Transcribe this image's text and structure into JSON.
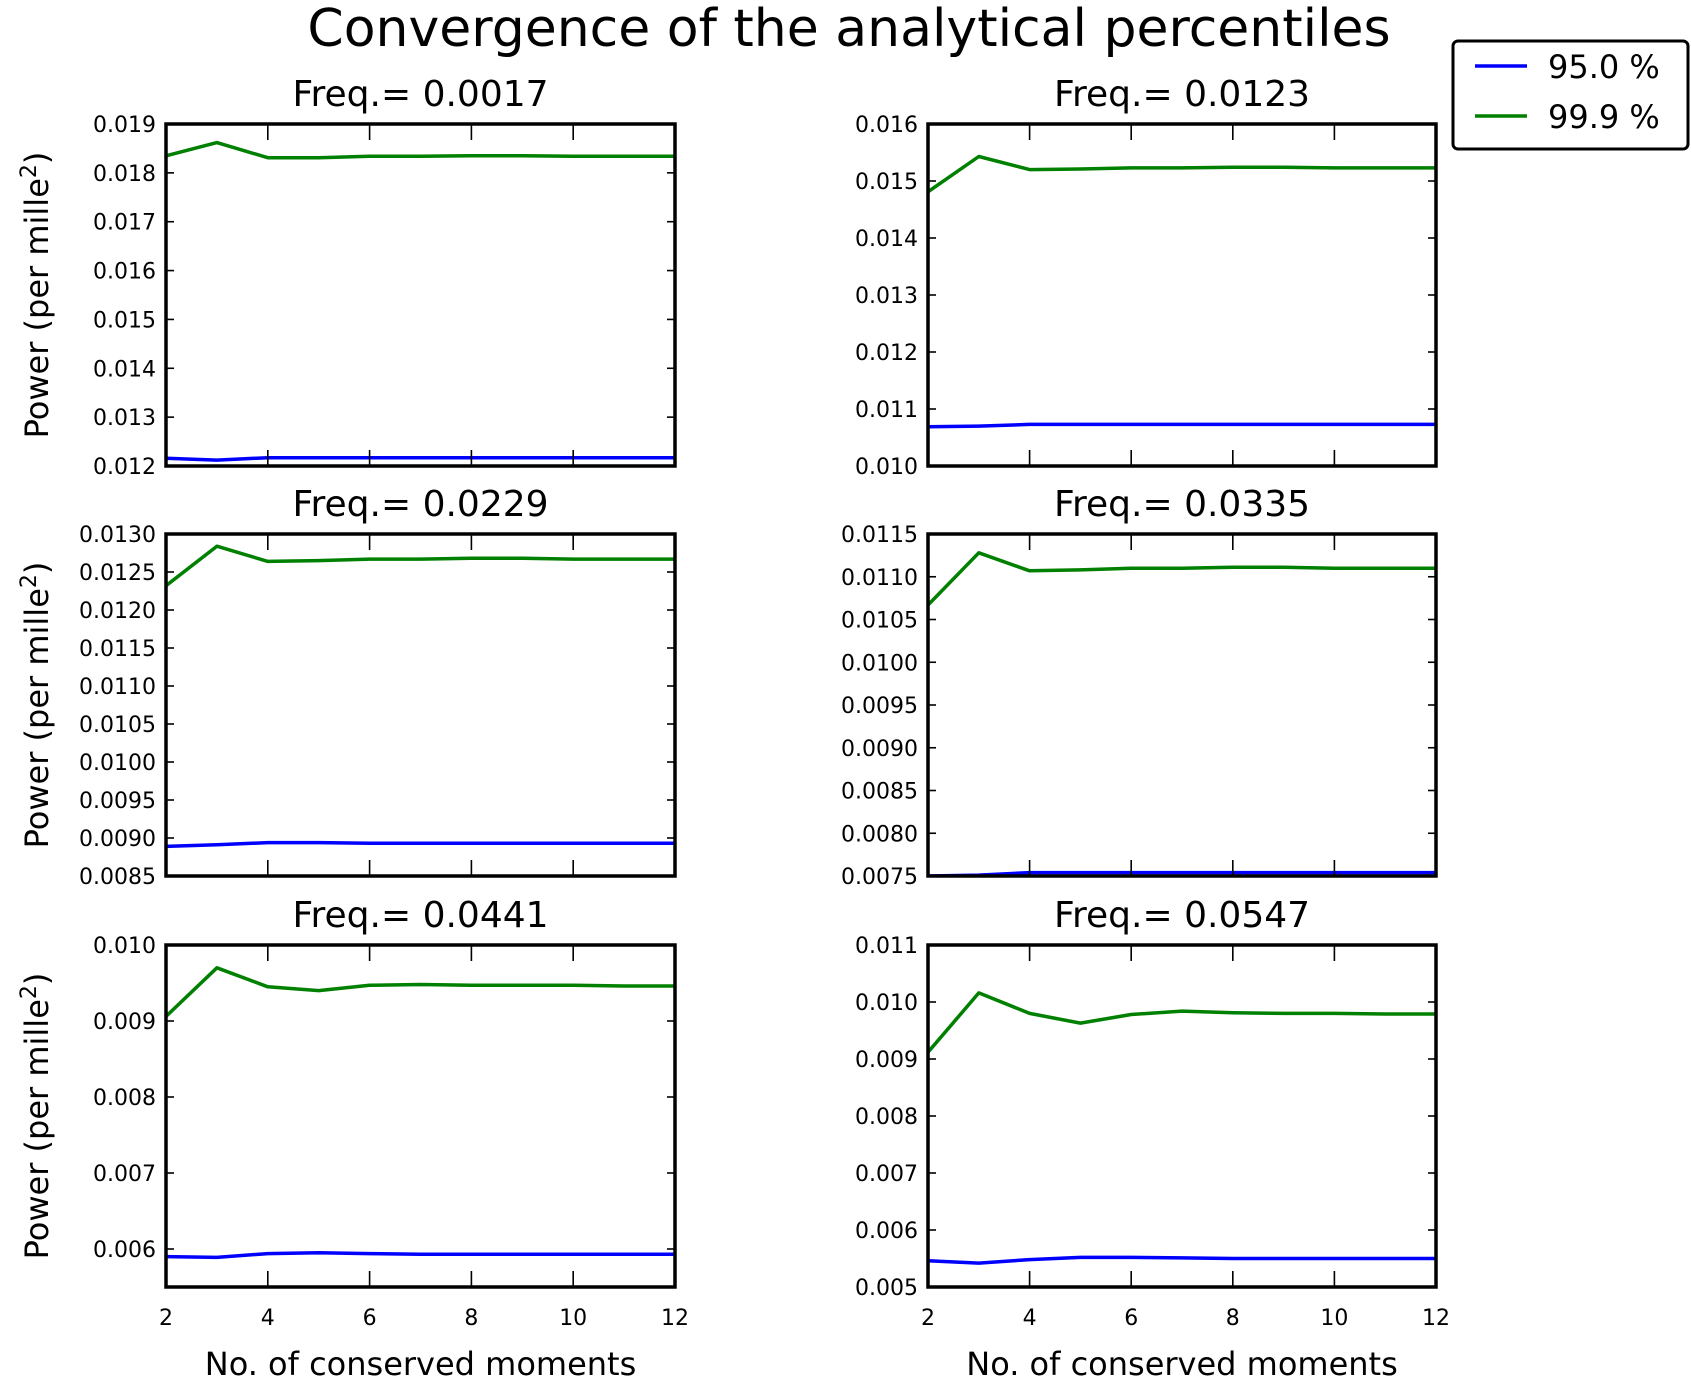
{
  "chart_data": {
    "type": "line",
    "title": "Convergence of the analytical percentiles",
    "legend": {
      "placement": "top-right",
      "entries": [
        {
          "label": "95.0 %",
          "color": "#0000ff"
        },
        {
          "label": "99.9 %",
          "color": "#008000"
        }
      ]
    },
    "x": [
      2,
      3,
      4,
      5,
      6,
      7,
      8,
      9,
      10,
      11,
      12
    ],
    "xlim": [
      2,
      12
    ],
    "xticks": [
      "2",
      "4",
      "6",
      "8",
      "10",
      "12"
    ],
    "xtick_values": [
      2,
      4,
      6,
      8,
      10,
      12
    ],
    "xlabel": "No. of conserved moments",
    "ylabel": "Power (per mille",
    "ylabel_sup": "2",
    "ylabel_close": ")",
    "subplots": [
      {
        "title": "Freq.= 0.0017",
        "ylim": [
          0.012,
          0.019
        ],
        "yticks": [
          "0.012",
          "0.013",
          "0.014",
          "0.015",
          "0.016",
          "0.017",
          "0.018",
          "0.019"
        ],
        "ytick_values": [
          0.012,
          0.013,
          0.014,
          0.015,
          0.016,
          0.017,
          0.018,
          0.019
        ],
        "series": [
          {
            "name": "95.0 %",
            "values": [
              0.01216,
              0.01212,
              0.01217,
              0.01217,
              0.01217,
              0.01217,
              0.01217,
              0.01217,
              0.01217,
              0.01217,
              0.01217
            ]
          },
          {
            "name": "99.9 %",
            "values": [
              0.01835,
              0.01862,
              0.01831,
              0.01831,
              0.01834,
              0.01834,
              0.01835,
              0.01835,
              0.01834,
              0.01834,
              0.01834
            ]
          }
        ]
      },
      {
        "title": "Freq.= 0.0123",
        "ylim": [
          0.01,
          0.016
        ],
        "yticks": [
          "0.010",
          "0.011",
          "0.012",
          "0.013",
          "0.014",
          "0.015",
          "0.016"
        ],
        "ytick_values": [
          0.01,
          0.011,
          0.012,
          0.013,
          0.014,
          0.015,
          0.016
        ],
        "series": [
          {
            "name": "95.0 %",
            "values": [
              0.01069,
              0.0107,
              0.01073,
              0.01073,
              0.01073,
              0.01073,
              0.01073,
              0.01073,
              0.01073,
              0.01073,
              0.01073
            ]
          },
          {
            "name": "99.9 %",
            "values": [
              0.01481,
              0.01543,
              0.0152,
              0.01521,
              0.01523,
              0.01523,
              0.01524,
              0.01524,
              0.01523,
              0.01523,
              0.01523
            ]
          }
        ]
      },
      {
        "title": "Freq.= 0.0229",
        "ylim": [
          0.0085,
          0.013
        ],
        "yticks": [
          "0.0085",
          "0.0090",
          "0.0095",
          "0.0100",
          "0.0105",
          "0.0110",
          "0.0115",
          "0.0120",
          "0.0125",
          "0.0130"
        ],
        "ytick_values": [
          0.0085,
          0.009,
          0.0095,
          0.01,
          0.0105,
          0.011,
          0.0115,
          0.012,
          0.0125,
          0.013
        ],
        "series": [
          {
            "name": "95.0 %",
            "values": [
              0.00889,
              0.00891,
              0.00894,
              0.00894,
              0.00893,
              0.00893,
              0.00893,
              0.00893,
              0.00893,
              0.00893,
              0.00893
            ]
          },
          {
            "name": "99.9 %",
            "values": [
              0.01232,
              0.01284,
              0.01264,
              0.01265,
              0.01267,
              0.01267,
              0.01268,
              0.01268,
              0.01267,
              0.01267,
              0.01267
            ]
          }
        ]
      },
      {
        "title": "Freq.= 0.0335",
        "ylim": [
          0.0075,
          0.0115
        ],
        "yticks": [
          "0.0075",
          "0.0080",
          "0.0085",
          "0.0090",
          "0.0095",
          "0.0100",
          "0.0105",
          "0.0110",
          "0.0115"
        ],
        "ytick_values": [
          0.0075,
          0.008,
          0.0085,
          0.009,
          0.0095,
          0.01,
          0.0105,
          0.011,
          0.0115
        ],
        "series": [
          {
            "name": "95.0 %",
            "values": [
              0.0075,
              0.00751,
              0.00754,
              0.00754,
              0.00754,
              0.00754,
              0.00754,
              0.00754,
              0.00754,
              0.00754,
              0.00754
            ]
          },
          {
            "name": "99.9 %",
            "values": [
              0.01067,
              0.01128,
              0.01107,
              0.01108,
              0.0111,
              0.0111,
              0.01111,
              0.01111,
              0.0111,
              0.0111,
              0.0111
            ]
          }
        ]
      },
      {
        "title": "Freq.= 0.0441",
        "ylim": [
          0.0055,
          0.01
        ],
        "yticks": [
          "0.006",
          "0.007",
          "0.008",
          "0.009",
          "0.010"
        ],
        "ytick_values": [
          0.006,
          0.007,
          0.008,
          0.009,
          0.01
        ],
        "series": [
          {
            "name": "95.0 %",
            "values": [
              0.0059,
              0.00589,
              0.00594,
              0.00595,
              0.00594,
              0.00593,
              0.00593,
              0.00593,
              0.00593,
              0.00593,
              0.00593
            ]
          },
          {
            "name": "99.9 %",
            "values": [
              0.00906,
              0.0097,
              0.00945,
              0.0094,
              0.00947,
              0.00948,
              0.00947,
              0.00947,
              0.00947,
              0.00946,
              0.00946
            ]
          }
        ]
      },
      {
        "title": "Freq.= 0.0547",
        "ylim": [
          0.005,
          0.011
        ],
        "yticks": [
          "0.005",
          "0.006",
          "0.007",
          "0.008",
          "0.009",
          "0.010",
          "0.011"
        ],
        "ytick_values": [
          0.005,
          0.006,
          0.007,
          0.008,
          0.009,
          0.01,
          0.011
        ],
        "series": [
          {
            "name": "95.0 %",
            "values": [
              0.00546,
              0.00542,
              0.00548,
              0.00552,
              0.00552,
              0.00551,
              0.0055,
              0.0055,
              0.0055,
              0.0055,
              0.0055
            ]
          },
          {
            "name": "99.9 %",
            "values": [
              0.00912,
              0.01016,
              0.0098,
              0.00963,
              0.00978,
              0.00984,
              0.00981,
              0.0098,
              0.0098,
              0.00979,
              0.00979
            ]
          }
        ]
      }
    ]
  }
}
